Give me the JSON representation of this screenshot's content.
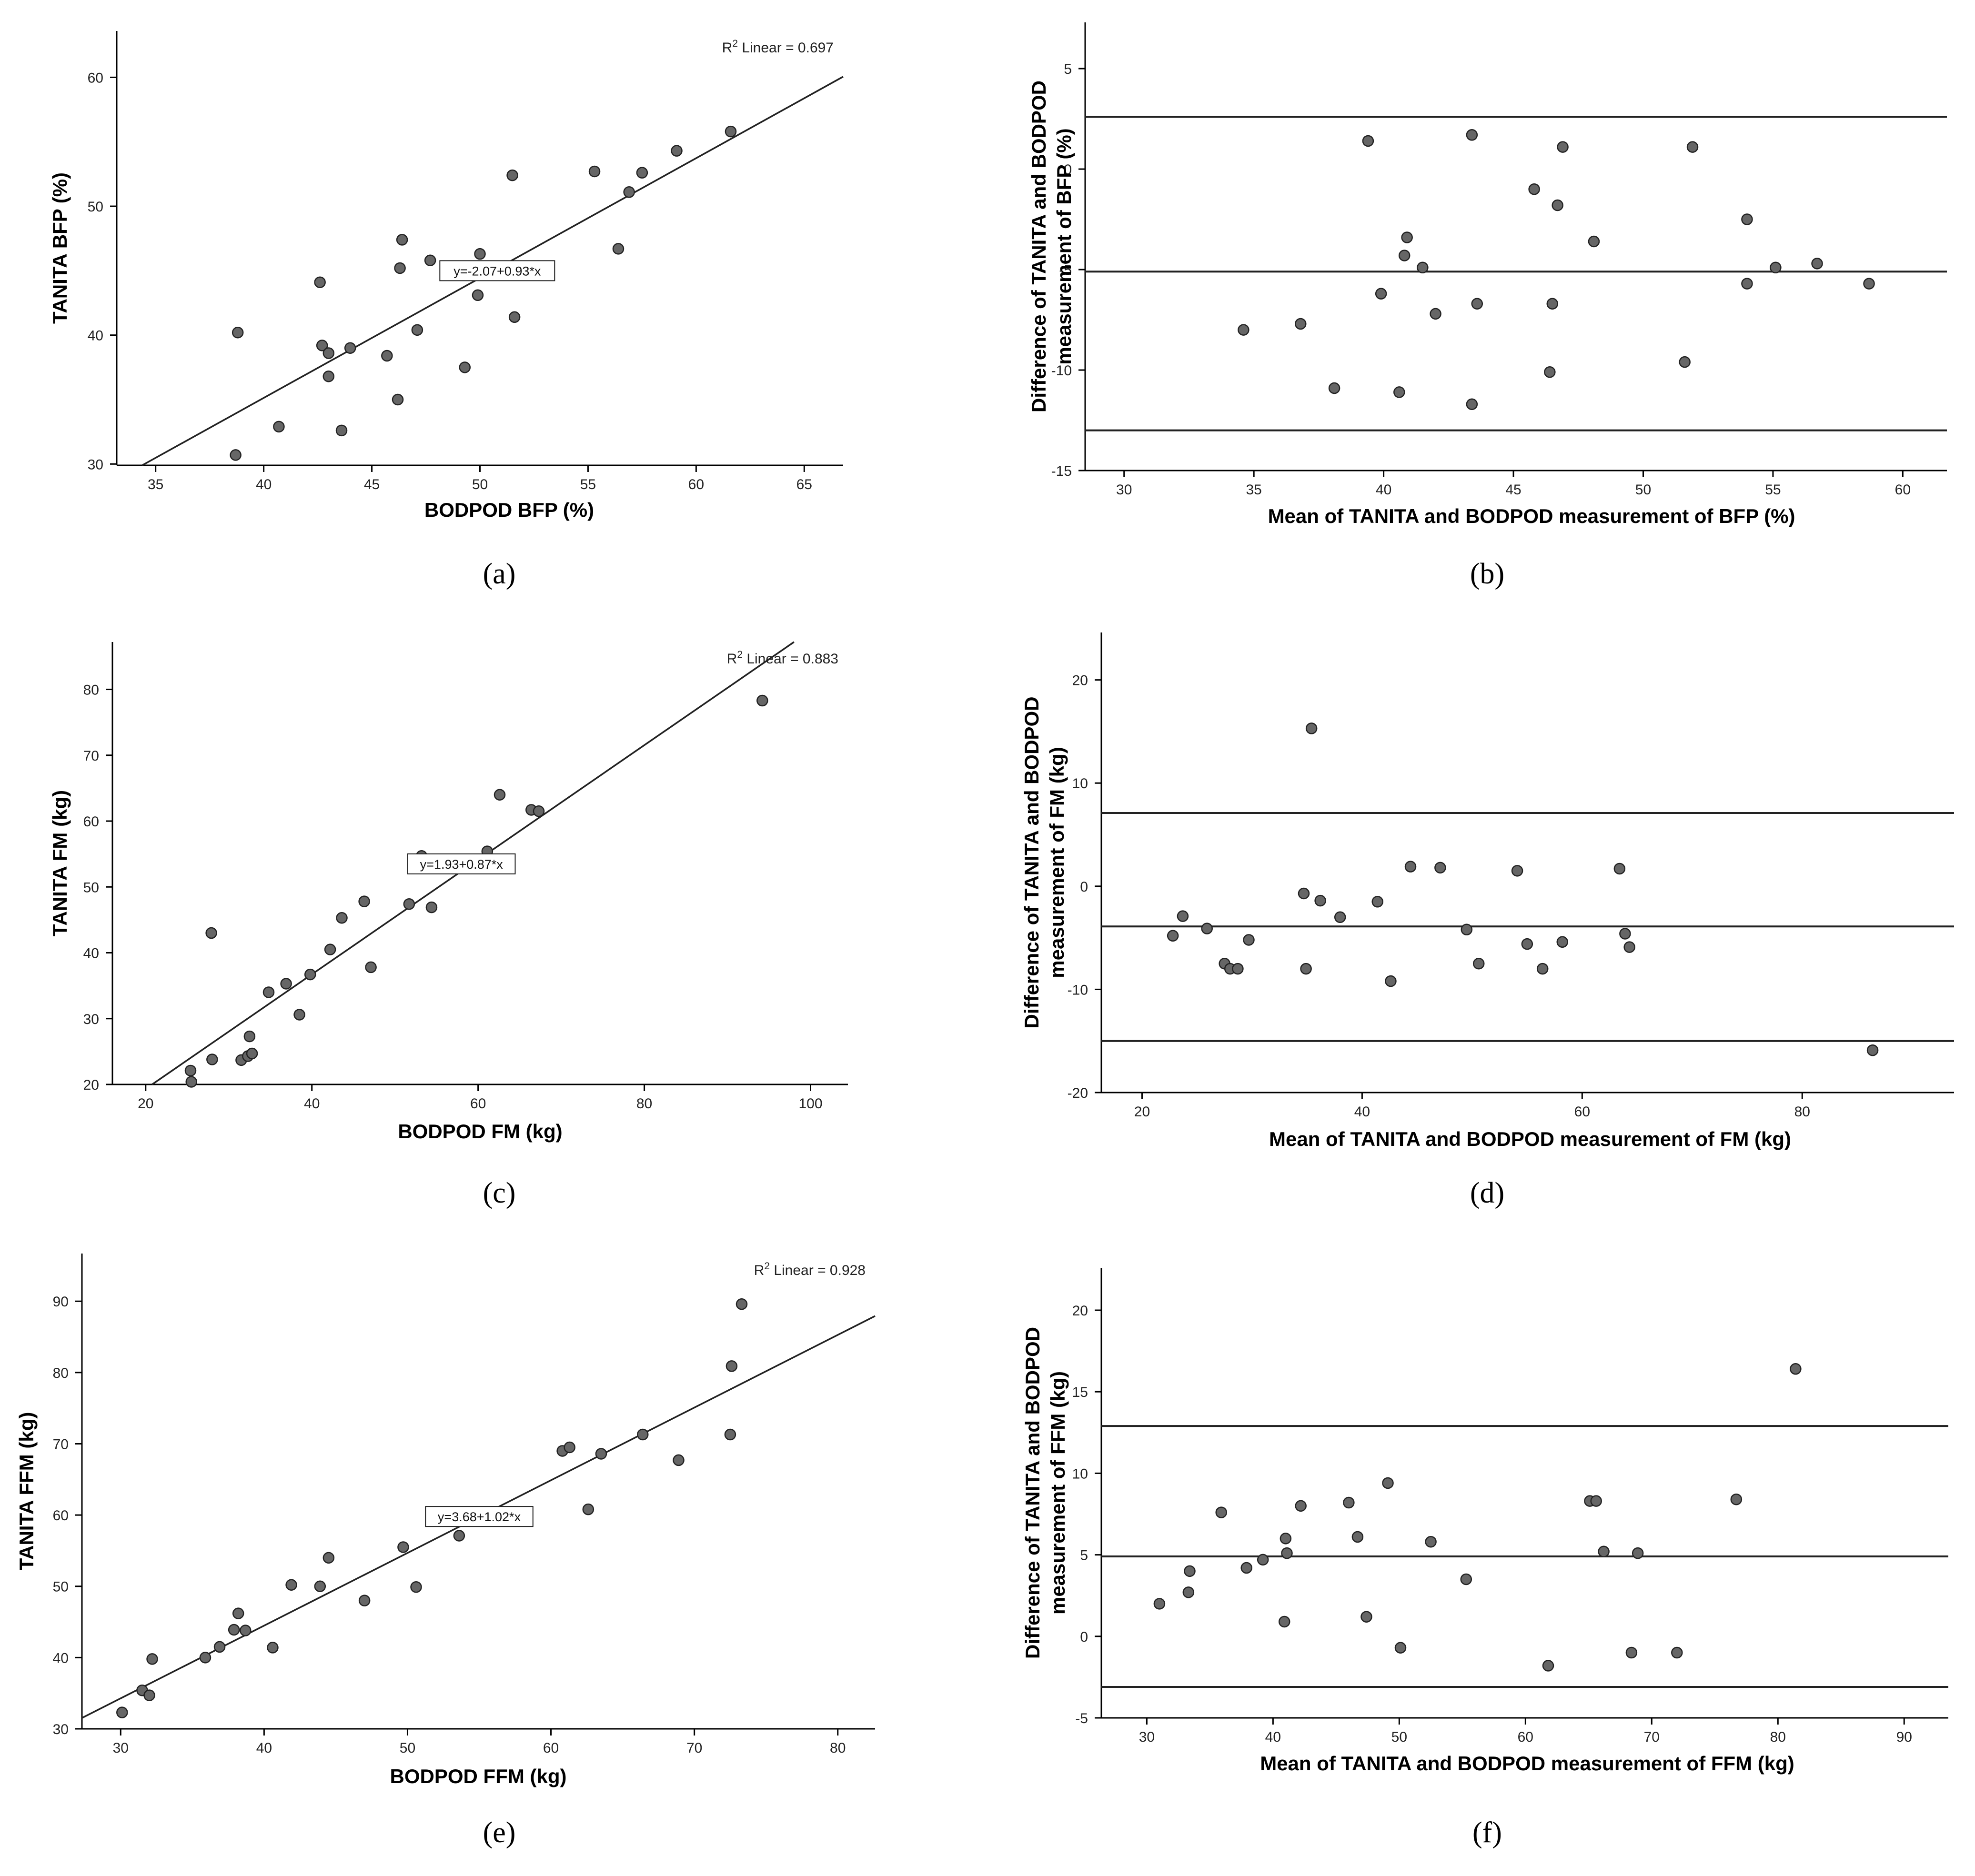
{
  "chart_data": [
    {
      "id": "a",
      "type": "scatter",
      "panel_label": "(a)",
      "xlabel": "BODPOD BFP (%)",
      "ylabel": "TANITA BFP (%)",
      "xlim": [
        33.2,
        66.8
      ],
      "ylim": [
        29.9,
        63.6
      ],
      "xticks": [
        35,
        40,
        45,
        50,
        55,
        60,
        65
      ],
      "yticks": [
        30,
        40,
        50,
        60
      ],
      "r2_prefix": "R",
      "r2_suffix": " Linear = 0.697",
      "r2_value": 0.697,
      "equation": "y=-2.07+0.93*x",
      "fit": {
        "intercept": -2.07,
        "slope": 0.93
      },
      "eq_at": [
        50.8,
        45.0
      ],
      "points": [
        [
          38.7,
          30.7
        ],
        [
          38.8,
          40.2
        ],
        [
          40.7,
          32.9
        ],
        [
          42.6,
          44.1
        ],
        [
          42.7,
          39.2
        ],
        [
          43.0,
          38.6
        ],
        [
          43.0,
          36.8
        ],
        [
          43.6,
          32.6
        ],
        [
          44.0,
          39.0
        ],
        [
          45.7,
          38.4
        ],
        [
          46.2,
          35.0
        ],
        [
          46.3,
          45.2
        ],
        [
          46.4,
          47.4
        ],
        [
          47.1,
          40.4
        ],
        [
          47.7,
          45.8
        ],
        [
          49.3,
          37.5
        ],
        [
          49.9,
          43.1
        ],
        [
          50.0,
          46.3
        ],
        [
          51.5,
          52.4
        ],
        [
          51.6,
          41.4
        ],
        [
          55.3,
          52.7
        ],
        [
          56.4,
          46.7
        ],
        [
          56.9,
          51.1
        ],
        [
          57.5,
          52.6
        ],
        [
          59.1,
          54.3
        ],
        [
          61.6,
          55.8
        ]
      ]
    },
    {
      "id": "b",
      "type": "scatter",
      "panel_label": "(b)",
      "xlabel": "Mean of TANITA and BODPOD measurement of BFP (%)",
      "ylabel": [
        "Difference of TANITA and BODPOD",
        "measurement of BFP (%)"
      ],
      "xlim": [
        28.5,
        61.7
      ],
      "ylim": [
        -15,
        7.3
      ],
      "xticks": [
        30,
        35,
        40,
        45,
        50,
        55,
        60
      ],
      "yticks": [
        -15,
        -10,
        -5,
        0,
        5
      ],
      "hlines": [
        2.6,
        -5.1,
        -13.0
      ],
      "points": [
        [
          34.6,
          -8.0
        ],
        [
          36.8,
          -7.7
        ],
        [
          38.1,
          -10.9
        ],
        [
          39.4,
          1.4
        ],
        [
          39.9,
          -6.2
        ],
        [
          40.6,
          -11.1
        ],
        [
          40.8,
          -4.3
        ],
        [
          40.9,
          -3.4
        ],
        [
          41.5,
          -4.9
        ],
        [
          42.0,
          -7.2
        ],
        [
          43.4,
          1.7
        ],
        [
          43.4,
          -11.7
        ],
        [
          43.6,
          -6.7
        ],
        [
          45.8,
          -1.0
        ],
        [
          46.4,
          -10.1
        ],
        [
          46.5,
          -6.7
        ],
        [
          46.7,
          -1.8
        ],
        [
          46.9,
          1.1
        ],
        [
          48.1,
          -3.6
        ],
        [
          51.6,
          -9.6
        ],
        [
          51.9,
          1.1
        ],
        [
          54.0,
          -2.5
        ],
        [
          54.0,
          -5.7
        ],
        [
          55.1,
          -4.9
        ],
        [
          56.7,
          -4.7
        ],
        [
          58.7,
          -5.7
        ]
      ]
    },
    {
      "id": "c",
      "type": "scatter",
      "panel_label": "(c)",
      "xlabel": "BODPOD FM (kg)",
      "ylabel": "TANITA FM (kg)",
      "xlim": [
        16,
        104.5
      ],
      "ylim": [
        20,
        87.2
      ],
      "xticks": [
        20,
        40,
        60,
        80,
        100
      ],
      "yticks": [
        20,
        30,
        40,
        50,
        60,
        70,
        80
      ],
      "r2_prefix": "R",
      "r2_suffix": " Linear = 0.883",
      "r2_value": 0.883,
      "equation": "y=1.93+0.87*x",
      "fit": {
        "intercept": 1.93,
        "slope": 0.87
      },
      "eq_at": [
        58.0,
        53.5
      ],
      "points": [
        [
          25.4,
          22.1
        ],
        [
          25.5,
          20.4
        ],
        [
          27.9,
          43.0
        ],
        [
          28.0,
          23.8
        ],
        [
          31.5,
          23.7
        ],
        [
          32.3,
          24.3
        ],
        [
          32.5,
          27.3
        ],
        [
          32.8,
          24.7
        ],
        [
          34.8,
          34.0
        ],
        [
          36.9,
          35.3
        ],
        [
          38.5,
          30.6
        ],
        [
          39.8,
          36.7
        ],
        [
          42.2,
          40.5
        ],
        [
          43.6,
          45.3
        ],
        [
          46.3,
          47.8
        ],
        [
          47.1,
          37.8
        ],
        [
          51.7,
          47.4
        ],
        [
          53.2,
          54.7
        ],
        [
          54.4,
          46.9
        ],
        [
          61.1,
          55.4
        ],
        [
          62.6,
          64.0
        ],
        [
          66.4,
          61.7
        ],
        [
          67.3,
          61.5
        ],
        [
          94.2,
          78.3
        ]
      ]
    },
    {
      "id": "d",
      "type": "scatter",
      "panel_label": "(d)",
      "xlabel": "Mean of TANITA and BODPOD measurement of FM (kg)",
      "ylabel": [
        "Difference of TANITA and BODPOD",
        "measurement of FM (kg)"
      ],
      "xlim": [
        16.3,
        93.8
      ],
      "ylim": [
        -20,
        24.6
      ],
      "xticks": [
        20,
        40,
        60,
        80
      ],
      "yticks": [
        -20,
        -10,
        0,
        10,
        20
      ],
      "hlines": [
        7.1,
        -3.9,
        -15.0
      ],
      "points": [
        [
          22.8,
          -4.8
        ],
        [
          23.7,
          -2.9
        ],
        [
          25.9,
          -4.1
        ],
        [
          27.5,
          -7.5
        ],
        [
          28.0,
          -8.0
        ],
        [
          28.7,
          -8.0
        ],
        [
          29.7,
          -5.2
        ],
        [
          34.7,
          -0.7
        ],
        [
          34.9,
          -8.0
        ],
        [
          35.4,
          15.3
        ],
        [
          36.2,
          -1.4
        ],
        [
          38.0,
          -3.0
        ],
        [
          41.4,
          -1.5
        ],
        [
          42.6,
          -9.2
        ],
        [
          44.4,
          1.9
        ],
        [
          47.1,
          1.8
        ],
        [
          49.5,
          -4.2
        ],
        [
          50.6,
          -7.5
        ],
        [
          54.1,
          1.5
        ],
        [
          55.0,
          -5.6
        ],
        [
          56.4,
          -8.0
        ],
        [
          58.2,
          -5.4
        ],
        [
          63.4,
          1.7
        ],
        [
          63.9,
          -4.6
        ],
        [
          64.3,
          -5.9
        ],
        [
          86.4,
          -15.9
        ]
      ]
    },
    {
      "id": "e",
      "type": "scatter",
      "panel_label": "(e)",
      "xlabel": "BODPOD FFM (kg)",
      "ylabel": "TANITA FFM (kg)",
      "xlim": [
        27.3,
        82.6
      ],
      "ylim": [
        30,
        96.7
      ],
      "xticks": [
        30,
        40,
        50,
        60,
        70,
        80
      ],
      "yticks": [
        30,
        40,
        50,
        60,
        70,
        80,
        90
      ],
      "r2_prefix": "R",
      "r2_suffix": " Linear = 0.928",
      "r2_value": 0.928,
      "equation": "y=3.68+1.02*x",
      "fit": {
        "intercept": 3.68,
        "slope": 1.02
      },
      "eq_at": [
        55.0,
        59.8
      ],
      "points": [
        [
          30.1,
          32.3
        ],
        [
          31.5,
          35.4
        ],
        [
          32.0,
          34.7
        ],
        [
          32.2,
          39.8
        ],
        [
          35.9,
          40.0
        ],
        [
          36.9,
          41.5
        ],
        [
          37.9,
          43.9
        ],
        [
          38.2,
          46.2
        ],
        [
          38.7,
          43.8
        ],
        [
          40.6,
          41.4
        ],
        [
          41.9,
          50.2
        ],
        [
          43.9,
          50.0
        ],
        [
          44.5,
          54.0
        ],
        [
          47.0,
          48.0
        ],
        [
          49.7,
          55.5
        ],
        [
          50.6,
          49.9
        ],
        [
          53.6,
          57.1
        ],
        [
          60.8,
          69.0
        ],
        [
          61.3,
          69.5
        ],
        [
          62.6,
          60.8
        ],
        [
          63.5,
          68.6
        ],
        [
          66.4,
          71.3
        ],
        [
          68.9,
          67.7
        ],
        [
          72.5,
          71.3
        ],
        [
          72.6,
          80.9
        ],
        [
          73.3,
          89.6
        ]
      ]
    },
    {
      "id": "f",
      "type": "scatter",
      "panel_label": "(f)",
      "xlabel": "Mean of TANITA and BODPOD measurement of FFM (kg)",
      "ylabel": [
        "Difference of TANITA and BODPOD",
        "measurement of FFM (kg)"
      ],
      "xlim": [
        26.4,
        93.5
      ],
      "ylim": [
        -5,
        22.6
      ],
      "xticks": [
        30,
        40,
        50,
        60,
        70,
        80,
        90
      ],
      "yticks": [
        -5,
        0,
        5,
        10,
        15,
        20
      ],
      "hlines": [
        12.9,
        4.9,
        -3.1
      ],
      "points": [
        [
          31.0,
          2.0
        ],
        [
          33.3,
          2.7
        ],
        [
          33.4,
          4.0
        ],
        [
          35.9,
          7.6
        ],
        [
          37.9,
          4.2
        ],
        [
          39.2,
          4.7
        ],
        [
          40.9,
          0.9
        ],
        [
          41.0,
          6.0
        ],
        [
          41.1,
          5.1
        ],
        [
          42.2,
          8.0
        ],
        [
          46.0,
          8.2
        ],
        [
          46.7,
          6.1
        ],
        [
          47.4,
          1.2
        ],
        [
          49.1,
          9.4
        ],
        [
          50.1,
          -0.7
        ],
        [
          52.5,
          5.8
        ],
        [
          55.3,
          3.5
        ],
        [
          61.8,
          -1.8
        ],
        [
          65.1,
          8.3
        ],
        [
          65.6,
          8.3
        ],
        [
          66.2,
          5.2
        ],
        [
          68.4,
          -1.0
        ],
        [
          68.9,
          5.1
        ],
        [
          72.0,
          -1.0
        ],
        [
          76.7,
          8.4
        ],
        [
          81.4,
          16.4
        ]
      ]
    }
  ]
}
